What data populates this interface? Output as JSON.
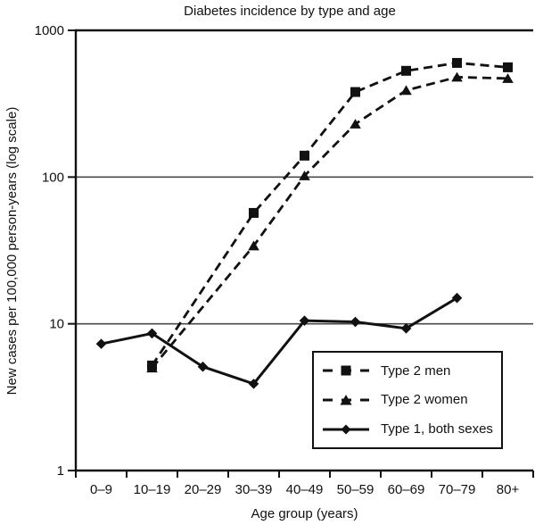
{
  "chart_data": {
    "type": "line",
    "title": "Diabetes incidence by type and age",
    "xlabel": "Age group (years)",
    "ylabel": "New cases per 100,000 person-years (log scale)",
    "y_scale": "log",
    "ylim": [
      1,
      1000
    ],
    "y_ticks": [
      1000,
      100,
      10,
      1
    ],
    "gridlines_at": [
      100,
      10
    ],
    "grid": "horizontal-only",
    "legend_position": "inside-bottom-right",
    "categories": [
      "0–9",
      "10–19",
      "20–29",
      "30–39",
      "40–49",
      "50–59",
      "60–69",
      "70–79",
      "80+"
    ],
    "series": [
      {
        "name": "Type 2 men",
        "marker": "square",
        "line_style": "dashed",
        "color": "#111111",
        "points": [
          {
            "category": "10–19",
            "value": 5.2
          },
          {
            "category": "30–39",
            "value": 57
          },
          {
            "category": "40–49",
            "value": 140
          },
          {
            "category": "50–59",
            "value": 380
          },
          {
            "category": "60–69",
            "value": 530
          },
          {
            "category": "70–79",
            "value": 600
          },
          {
            "category": "80+",
            "value": 560
          }
        ]
      },
      {
        "name": "Type 2 women",
        "marker": "triangle",
        "line_style": "dashed",
        "color": "#111111",
        "points": [
          {
            "category": "10–19",
            "value": 5.0
          },
          {
            "category": "30–39",
            "value": 34
          },
          {
            "category": "40–49",
            "value": 102
          },
          {
            "category": "50–59",
            "value": 230
          },
          {
            "category": "60–69",
            "value": 390
          },
          {
            "category": "70–79",
            "value": 480
          },
          {
            "category": "80+",
            "value": 470
          }
        ]
      },
      {
        "name": "Type 1, both sexes",
        "marker": "diamond",
        "line_style": "solid",
        "color": "#111111",
        "points": [
          {
            "category": "0–9",
            "value": 7.3
          },
          {
            "category": "10–19",
            "value": 8.6
          },
          {
            "category": "20–29",
            "value": 5.1
          },
          {
            "category": "30–39",
            "value": 3.9
          },
          {
            "category": "40–49",
            "value": 10.5
          },
          {
            "category": "50–59",
            "value": 10.3
          },
          {
            "category": "60–69",
            "value": 9.3
          },
          {
            "category": "70–79",
            "value": 15
          }
        ]
      }
    ]
  }
}
